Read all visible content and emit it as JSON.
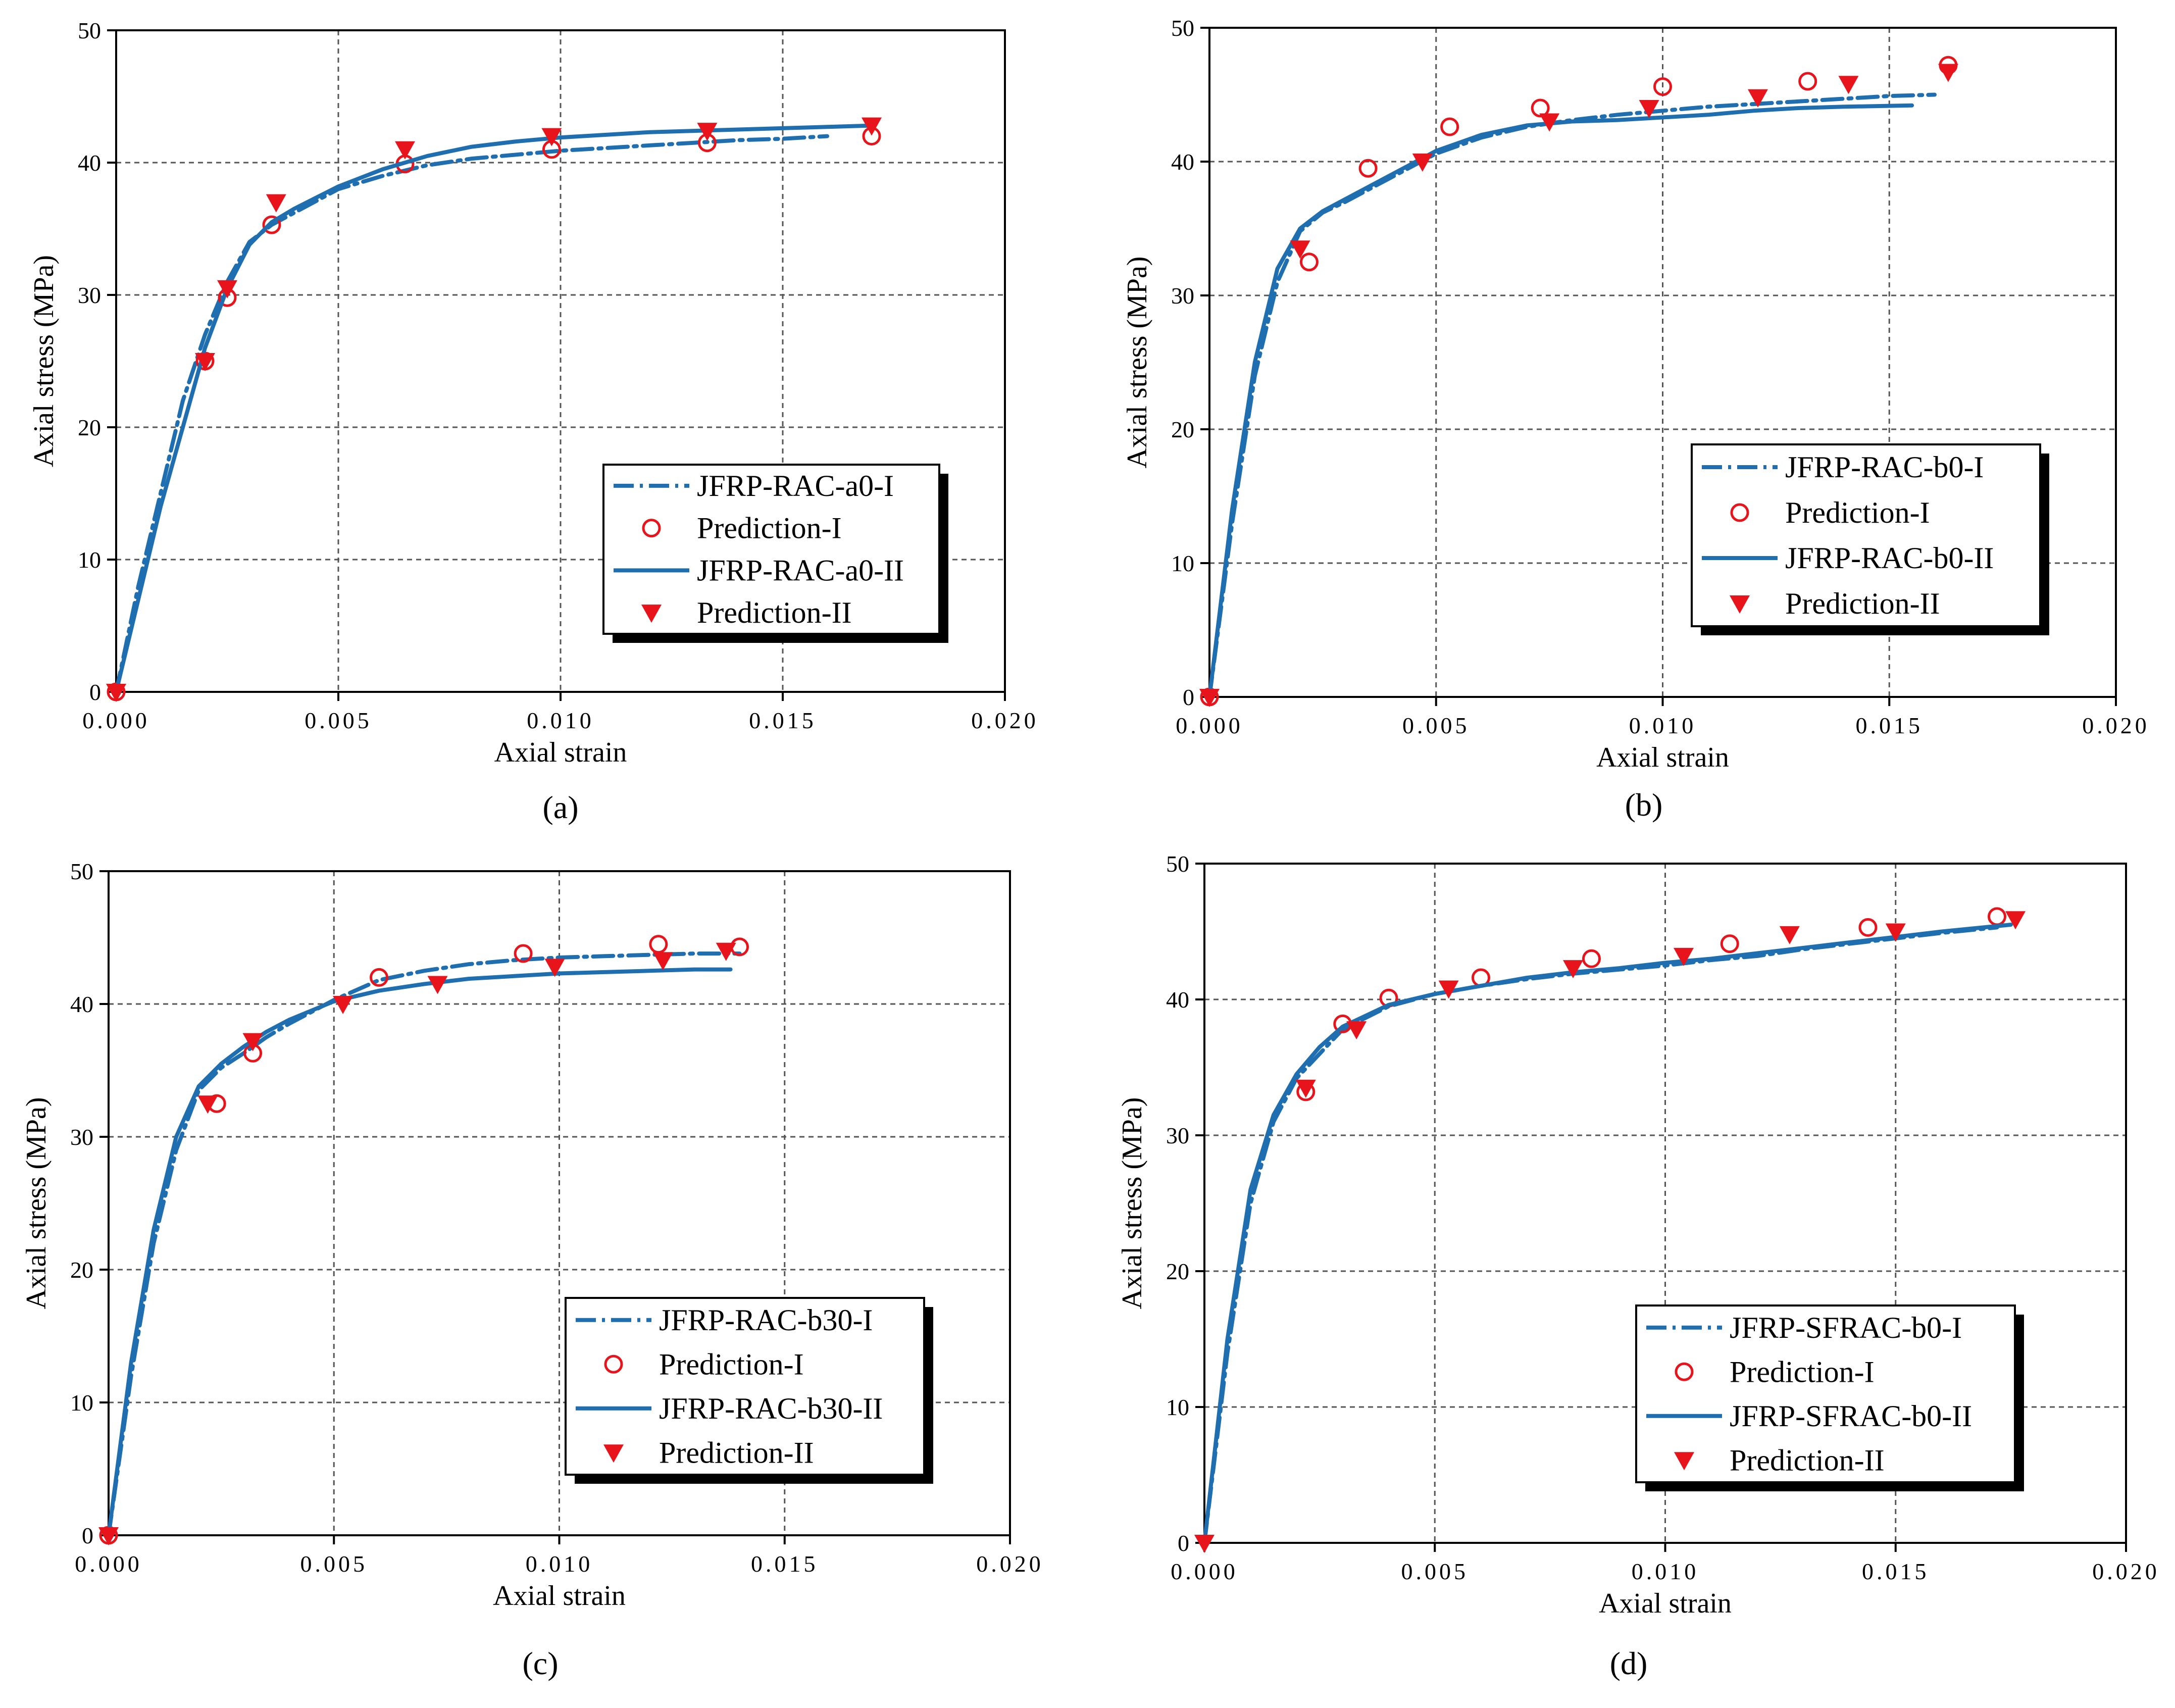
{
  "chart_data": [
    {
      "type": "line",
      "panel_label": "(a)",
      "xlabel": "Axial strain",
      "ylabel": "Axial stress (MPa)",
      "xlim": [
        0,
        0.02
      ],
      "ylim": [
        0,
        50
      ],
      "x_ticks": [
        "0.000",
        "0.005",
        "0.010",
        "0.015",
        "0.020"
      ],
      "y_ticks": [
        "0",
        "10",
        "20",
        "30",
        "40",
        "50"
      ],
      "grid": true,
      "legend_position": "lower-right",
      "legend": [
        "JFRP-RAC-a0-I",
        "Prediction-I",
        "JFRP-RAC-a0-II",
        "Prediction-II"
      ],
      "series": [
        {
          "name": "JFRP-RAC-a0-I",
          "style": "dash-dot",
          "x": [
            0,
            0.0005,
            0.001,
            0.0015,
            0.002,
            0.0025,
            0.003,
            0.0035,
            0.004,
            0.005,
            0.006,
            0.007,
            0.008,
            0.009,
            0.01,
            0.011,
            0.012,
            0.013,
            0.014,
            0.015,
            0.016
          ],
          "y": [
            0,
            8,
            15,
            22,
            27,
            31,
            34,
            35.3,
            36.2,
            38,
            39,
            39.8,
            40.3,
            40.6,
            40.9,
            41.1,
            41.3,
            41.5,
            41.7,
            41.8,
            42
          ]
        },
        {
          "name": "Prediction-I",
          "style": "open-circle",
          "x": [
            0,
            0.002,
            0.0025,
            0.0035,
            0.0065,
            0.0098,
            0.0133,
            0.017
          ],
          "y": [
            0,
            25,
            29.8,
            35.3,
            39.9,
            41,
            41.5,
            42
          ]
        },
        {
          "name": "JFRP-RAC-a0-II",
          "style": "solid",
          "x": [
            0,
            0.0005,
            0.001,
            0.0015,
            0.002,
            0.0025,
            0.003,
            0.0035,
            0.004,
            0.005,
            0.006,
            0.007,
            0.008,
            0.009,
            0.01,
            0.011,
            0.012,
            0.013,
            0.014,
            0.015,
            0.016,
            0.017
          ],
          "y": [
            0,
            7,
            14,
            20,
            26,
            30.5,
            33.8,
            35.5,
            36.5,
            38.2,
            39.5,
            40.5,
            41.2,
            41.6,
            41.9,
            42.1,
            42.3,
            42.4,
            42.5,
            42.6,
            42.7,
            42.8
          ]
        },
        {
          "name": "Prediction-II",
          "style": "filled-triangle",
          "x": [
            0,
            0.002,
            0.0025,
            0.0036,
            0.0065,
            0.0098,
            0.0133,
            0.017
          ],
          "y": [
            0,
            25,
            30.5,
            37,
            41,
            42,
            42.4,
            42.8
          ]
        }
      ]
    },
    {
      "type": "line",
      "panel_label": "(b)",
      "xlabel": "Axial strain",
      "ylabel": "Axial stress (MPa)",
      "xlim": [
        0,
        0.02
      ],
      "ylim": [
        0,
        50
      ],
      "x_ticks": [
        "0.000",
        "0.005",
        "0.010",
        "0.015",
        "0.020"
      ],
      "y_ticks": [
        "0",
        "10",
        "20",
        "30",
        "40",
        "50"
      ],
      "grid": true,
      "legend_position": "lower-right",
      "legend": [
        "JFRP-RAC-b0-I",
        "Prediction-I",
        "JFRP-RAC-b0-II",
        "Prediction-II"
      ],
      "series": [
        {
          "name": "JFRP-RAC-b0-I",
          "style": "dash-dot",
          "x": [
            0,
            0.0005,
            0.001,
            0.0015,
            0.002,
            0.0025,
            0.003,
            0.004,
            0.005,
            0.006,
            0.007,
            0.008,
            0.009,
            0.01,
            0.011,
            0.012,
            0.013,
            0.014,
            0.015,
            0.016
          ],
          "y": [
            0,
            13,
            24,
            31,
            34.8,
            36.2,
            37,
            38.8,
            40.6,
            41.8,
            42.6,
            43.1,
            43.5,
            43.8,
            44.1,
            44.3,
            44.5,
            44.7,
            44.9,
            45
          ]
        },
        {
          "name": "Prediction-I",
          "style": "open-circle",
          "x": [
            0,
            0.0022,
            0.0035,
            0.0053,
            0.0073,
            0.01,
            0.0132,
            0.0163
          ],
          "y": [
            0,
            32.5,
            39.5,
            42.6,
            44,
            45.6,
            46,
            47.2
          ]
        },
        {
          "name": "JFRP-RAC-b0-II",
          "style": "solid",
          "x": [
            0,
            0.0005,
            0.001,
            0.0015,
            0.002,
            0.0025,
            0.003,
            0.004,
            0.005,
            0.006,
            0.007,
            0.008,
            0.009,
            0.01,
            0.011,
            0.012,
            0.013,
            0.014,
            0.0155
          ],
          "y": [
            0,
            14,
            25,
            32,
            35,
            36.3,
            37.2,
            39,
            40.8,
            42,
            42.7,
            43,
            43.1,
            43.3,
            43.5,
            43.8,
            44,
            44.1,
            44.2
          ]
        },
        {
          "name": "Prediction-II",
          "style": "filled-triangle",
          "x": [
            0,
            0.002,
            0.0047,
            0.0075,
            0.0097,
            0.0121,
            0.0141,
            0.0163
          ],
          "y": [
            0,
            33.5,
            40,
            43,
            44,
            44.8,
            45.8,
            46.7
          ]
        }
      ]
    },
    {
      "type": "line",
      "panel_label": "(c)",
      "xlabel": "Axial strain",
      "ylabel": "Axial stress (MPa)",
      "xlim": [
        0,
        0.02
      ],
      "ylim": [
        0,
        50
      ],
      "x_ticks": [
        "0.000",
        "0.005",
        "0.010",
        "0.015",
        "0.020"
      ],
      "y_ticks": [
        "0",
        "10",
        "20",
        "30",
        "40",
        "50"
      ],
      "grid": true,
      "legend_position": "lower-right",
      "legend": [
        "JFRP-RAC-b30-I",
        "Prediction-I",
        "JFRP-RAC-b30-II",
        "Prediction-II"
      ],
      "series": [
        {
          "name": "JFRP-RAC-b30-I",
          "style": "dash-dot",
          "x": [
            0,
            0.0005,
            0.001,
            0.0015,
            0.002,
            0.0025,
            0.003,
            0.0035,
            0.004,
            0.005,
            0.006,
            0.007,
            0.008,
            0.009,
            0.01,
            0.011,
            0.012,
            0.013,
            0.014
          ],
          "y": [
            0,
            12,
            22,
            29,
            33.5,
            35.2,
            36.3,
            37.5,
            38.5,
            40.3,
            41.8,
            42.5,
            43,
            43.3,
            43.5,
            43.6,
            43.7,
            43.8,
            43.8
          ]
        },
        {
          "name": "Prediction-I",
          "style": "open-circle",
          "x": [
            0,
            0.0024,
            0.0032,
            0.006,
            0.0092,
            0.0122,
            0.014
          ],
          "y": [
            0,
            32.5,
            36.3,
            42,
            43.8,
            44.5,
            44.3
          ]
        },
        {
          "name": "JFRP-RAC-b30-II",
          "style": "solid",
          "x": [
            0,
            0.0005,
            0.001,
            0.0015,
            0.002,
            0.0025,
            0.003,
            0.0035,
            0.004,
            0.005,
            0.006,
            0.007,
            0.008,
            0.009,
            0.01,
            0.011,
            0.012,
            0.013,
            0.0138
          ],
          "y": [
            0,
            13,
            23,
            30,
            33.8,
            35.5,
            36.8,
            37.9,
            38.8,
            40.2,
            41,
            41.5,
            41.9,
            42.1,
            42.3,
            42.4,
            42.5,
            42.6,
            42.6
          ]
        },
        {
          "name": "Prediction-II",
          "style": "filled-triangle",
          "x": [
            0,
            0.0022,
            0.0032,
            0.0052,
            0.0073,
            0.0099,
            0.0123,
            0.0137
          ],
          "y": [
            0,
            32.5,
            37.2,
            40,
            41.5,
            42.8,
            43.3,
            44
          ]
        }
      ]
    },
    {
      "type": "line",
      "panel_label": "(d)",
      "xlabel": "Axial strain",
      "ylabel": "Axial stress (MPa)",
      "xlim": [
        0,
        0.02
      ],
      "ylim": [
        0,
        50
      ],
      "x_ticks": [
        "0.000",
        "0.005",
        "0.010",
        "0.015",
        "0.020"
      ],
      "y_ticks": [
        "0",
        "10",
        "20",
        "30",
        "40",
        "50"
      ],
      "grid": true,
      "legend_position": "lower-right",
      "legend": [
        "JFRP-SFRAC-b0-I",
        "Prediction-I",
        "JFRP-SFRAC-b0-II",
        "Prediction-II"
      ],
      "series": [
        {
          "name": "JFRP-SFRAC-b0-I",
          "style": "dash-dot",
          "x": [
            0,
            0.0005,
            0.001,
            0.0015,
            0.002,
            0.0025,
            0.003,
            0.004,
            0.005,
            0.006,
            0.007,
            0.008,
            0.009,
            0.01,
            0.011,
            0.012,
            0.013,
            0.014,
            0.015,
            0.016,
            0.0172
          ],
          "y": [
            0,
            14,
            25,
            31,
            34.2,
            36,
            37.8,
            39.5,
            40.4,
            41,
            41.5,
            41.9,
            42.2,
            42.5,
            42.9,
            43.2,
            43.7,
            44.1,
            44.5,
            44.9,
            45.3
          ]
        },
        {
          "name": "Prediction-I",
          "style": "open-circle",
          "x": [
            0.0022,
            0.003,
            0.004,
            0.006,
            0.0084,
            0.0114,
            0.0144,
            0.0172
          ],
          "y": [
            33.2,
            38.2,
            40.1,
            41.6,
            43,
            44.1,
            45.3,
            46.1
          ]
        },
        {
          "name": "JFRP-SFRAC-b0-II",
          "style": "solid",
          "x": [
            0,
            0.0005,
            0.001,
            0.0015,
            0.002,
            0.0025,
            0.003,
            0.004,
            0.005,
            0.006,
            0.007,
            0.008,
            0.009,
            0.01,
            0.011,
            0.012,
            0.013,
            0.014,
            0.015,
            0.016,
            0.0175
          ],
          "y": [
            0,
            15,
            26,
            31.5,
            34.5,
            36.5,
            38,
            39.6,
            40.4,
            41,
            41.6,
            42,
            42.3,
            42.7,
            43,
            43.4,
            43.8,
            44.2,
            44.6,
            45,
            45.5
          ]
        },
        {
          "name": "Prediction-II",
          "style": "filled-triangle",
          "x": [
            0,
            0.0022,
            0.0033,
            0.0053,
            0.008,
            0.0104,
            0.0127,
            0.015,
            0.0176
          ],
          "y": [
            0,
            33.5,
            37.8,
            40.8,
            42.3,
            43.2,
            44.8,
            45,
            45.9
          ]
        }
      ]
    }
  ]
}
